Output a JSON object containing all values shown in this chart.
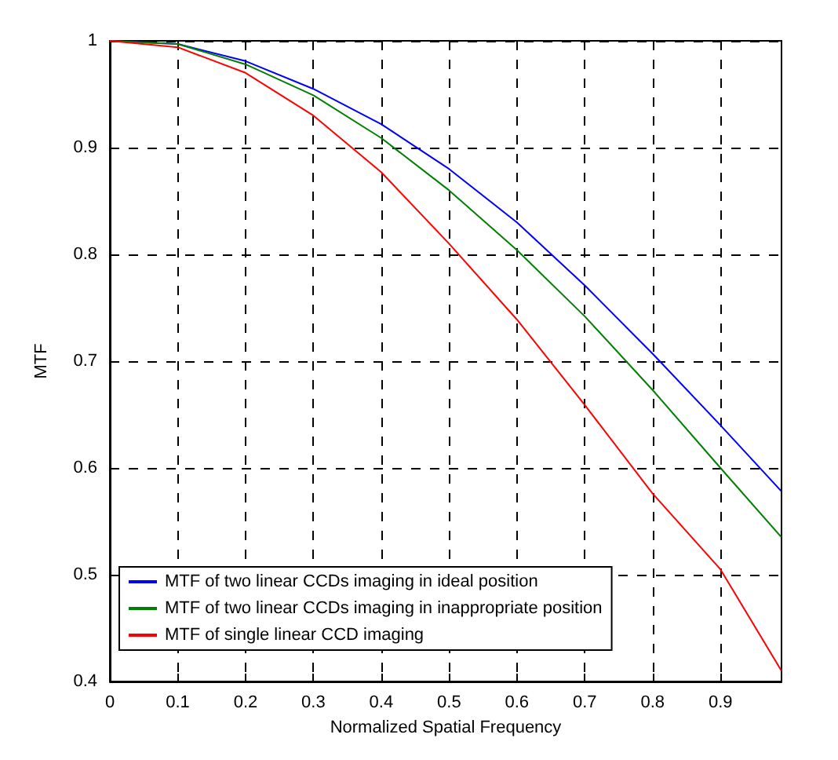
{
  "chart_data": {
    "type": "line",
    "xlabel": "Normalized Spatial Frequency",
    "ylabel": "MTF",
    "x": [
      0,
      0.1,
      0.2,
      0.3,
      0.4,
      0.5,
      0.6,
      0.7,
      0.8,
      0.9,
      0.99
    ],
    "series": [
      {
        "name": "MTF of two linear CCDs imaging in ideal position",
        "color": "#0000ff",
        "values": [
          1,
          0.997,
          0.981,
          0.955,
          0.922,
          0.88,
          0.83,
          0.771,
          0.707,
          0.64,
          0.578
        ]
      },
      {
        "name": "MTF of two linear CCDs imaging in inappropriate position",
        "color": "#008000",
        "values": [
          1,
          0.997,
          0.978,
          0.949,
          0.909,
          0.86,
          0.804,
          0.742,
          0.673,
          0.6,
          0.535
        ]
      },
      {
        "name": "MTF of single linear CCD imaging",
        "color": "#ff0000",
        "values": [
          1,
          0.994,
          0.97,
          0.93,
          0.877,
          0.81,
          0.739,
          0.659,
          0.576,
          0.505,
          0.41
        ]
      }
    ],
    "xlim": [
      0,
      0.99
    ],
    "xticks": [
      0,
      0.1,
      0.2,
      0.3,
      0.4,
      0.5,
      0.6,
      0.7,
      0.8,
      0.9
    ],
    "ylim": [
      0.4,
      1
    ],
    "yticks": [
      0.4,
      0.5,
      0.6,
      0.7,
      0.8,
      0.9,
      1
    ],
    "grid": true,
    "legend": "bottom left",
    "marker": "none",
    "line_style": "solid"
  }
}
